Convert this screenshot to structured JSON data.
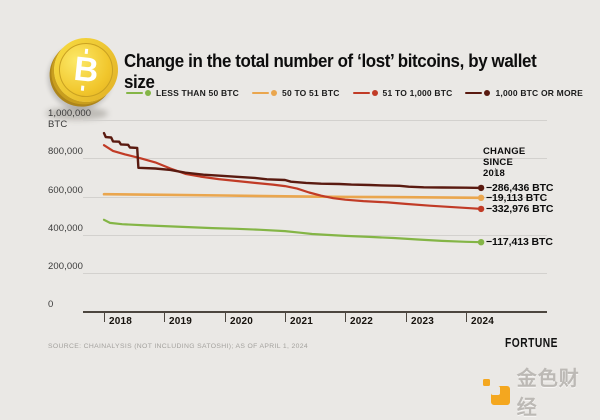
{
  "header": {
    "title": "Change in the total number of ‘lost’ bitcoins, by wallet size",
    "coin_symbol": "B"
  },
  "legend": [
    {
      "label": "LESS THAN 50 BTC",
      "color": "#84b546"
    },
    {
      "label": "50 TO 51 BTC",
      "color": "#eaa64e"
    },
    {
      "label": "51 TO 1,000 BTC",
      "color": "#c13b26"
    },
    {
      "label": "1,000 BTC OR MORE",
      "color": "#5a1a10"
    }
  ],
  "chart_data": {
    "type": "line",
    "title": "Change in the total number of ‘lost’ bitcoins, by wallet size",
    "grid": true,
    "x_axis": {
      "range": [
        2018,
        2024.35
      ],
      "tick_labels": [
        "2018",
        "2019",
        "2020",
        "2021",
        "2022",
        "2023",
        "2024"
      ],
      "tick_values": [
        2018,
        2019,
        2020,
        2021,
        2022,
        2023,
        2024
      ]
    },
    "y_axis": {
      "range": [
        0,
        1000000
      ],
      "tick_labels": [
        "1,000,000 BTC",
        "800,000",
        "600,000",
        "400,000",
        "200,000",
        "0"
      ],
      "tick_values": [
        1000000,
        800000,
        600000,
        400000,
        200000,
        0
      ]
    },
    "annotation_heading": {
      "line1": "CHANGE",
      "line2": "SINCE 2018"
    },
    "series": [
      {
        "name": "LESS THAN 50 BTC",
        "color": "#84b546",
        "change_label": "−117,413 BTC",
        "points": [
          [
            2018.0,
            480000
          ],
          [
            2018.1,
            464000
          ],
          [
            2018.3,
            457000
          ],
          [
            2018.7,
            451000
          ],
          [
            2019.0,
            447000
          ],
          [
            2019.4,
            442000
          ],
          [
            2019.8,
            437000
          ],
          [
            2020.2,
            433000
          ],
          [
            2020.6,
            428000
          ],
          [
            2021.0,
            421000
          ],
          [
            2021.25,
            413000
          ],
          [
            2021.45,
            406000
          ],
          [
            2021.7,
            401000
          ],
          [
            2022.0,
            396000
          ],
          [
            2022.4,
            391000
          ],
          [
            2022.8,
            385000
          ],
          [
            2023.2,
            377000
          ],
          [
            2023.6,
            370000
          ],
          [
            2024.0,
            365000
          ],
          [
            2024.25,
            363000
          ]
        ]
      },
      {
        "name": "50 TO 51 BTC",
        "color": "#eaa64e",
        "change_label": "−19,113 BTC",
        "points": [
          [
            2018.0,
            614000
          ],
          [
            2019.0,
            611000
          ],
          [
            2020.0,
            607000
          ],
          [
            2021.0,
            603000
          ],
          [
            2022.0,
            600000
          ],
          [
            2023.0,
            598000
          ],
          [
            2024.25,
            595000
          ]
        ]
      },
      {
        "name": "51 TO 1,000 BTC",
        "color": "#c13b26",
        "change_label": "−332,976 BTC",
        "points": [
          [
            2018.0,
            870000
          ],
          [
            2018.15,
            840000
          ],
          [
            2018.35,
            822000
          ],
          [
            2018.6,
            802000
          ],
          [
            2018.85,
            780000
          ],
          [
            2019.1,
            748000
          ],
          [
            2019.35,
            720000
          ],
          [
            2019.6,
            706000
          ],
          [
            2019.9,
            693000
          ],
          [
            2020.2,
            683000
          ],
          [
            2020.5,
            673000
          ],
          [
            2020.8,
            664000
          ],
          [
            2021.0,
            656000
          ],
          [
            2021.2,
            643000
          ],
          [
            2021.4,
            623000
          ],
          [
            2021.6,
            606000
          ],
          [
            2021.8,
            593000
          ],
          [
            2022.0,
            585000
          ],
          [
            2022.3,
            578000
          ],
          [
            2022.7,
            571000
          ],
          [
            2023.0,
            563000
          ],
          [
            2023.4,
            554000
          ],
          [
            2023.8,
            546000
          ],
          [
            2024.1,
            540000
          ],
          [
            2024.25,
            537000
          ]
        ]
      },
      {
        "name": "1,000 BTC OR MORE",
        "color": "#5a1a10",
        "change_label": "−286,436 BTC",
        "points": [
          [
            2018.0,
            933000
          ],
          [
            2018.03,
            912000
          ],
          [
            2018.12,
            910000
          ],
          [
            2018.15,
            890000
          ],
          [
            2018.25,
            888000
          ],
          [
            2018.28,
            874000
          ],
          [
            2018.4,
            872000
          ],
          [
            2018.43,
            858000
          ],
          [
            2018.55,
            856000
          ],
          [
            2018.57,
            752000
          ],
          [
            2018.85,
            748000
          ],
          [
            2019.1,
            741000
          ],
          [
            2019.35,
            726000
          ],
          [
            2019.65,
            716000
          ],
          [
            2019.95,
            710000
          ],
          [
            2020.2,
            705000
          ],
          [
            2020.5,
            699000
          ],
          [
            2020.7,
            692000
          ],
          [
            2021.0,
            688000
          ],
          [
            2021.1,
            679000
          ],
          [
            2021.35,
            673000
          ],
          [
            2021.6,
            669000
          ],
          [
            2021.9,
            667000
          ],
          [
            2022.1,
            664000
          ],
          [
            2022.4,
            662000
          ],
          [
            2022.6,
            660000
          ],
          [
            2022.9,
            658000
          ],
          [
            2023.05,
            653000
          ],
          [
            2023.3,
            650000
          ],
          [
            2023.6,
            649000
          ],
          [
            2024.0,
            648000
          ],
          [
            2024.25,
            647000
          ]
        ]
      }
    ]
  },
  "footer": {
    "source": "SOURCE: CHAINALYSIS (NOT INCLUDING SATOSHI); AS OF APRIL 1, 2024",
    "fortune_logo": "FORTUNE",
    "jinse_logo": "金色财经"
  }
}
